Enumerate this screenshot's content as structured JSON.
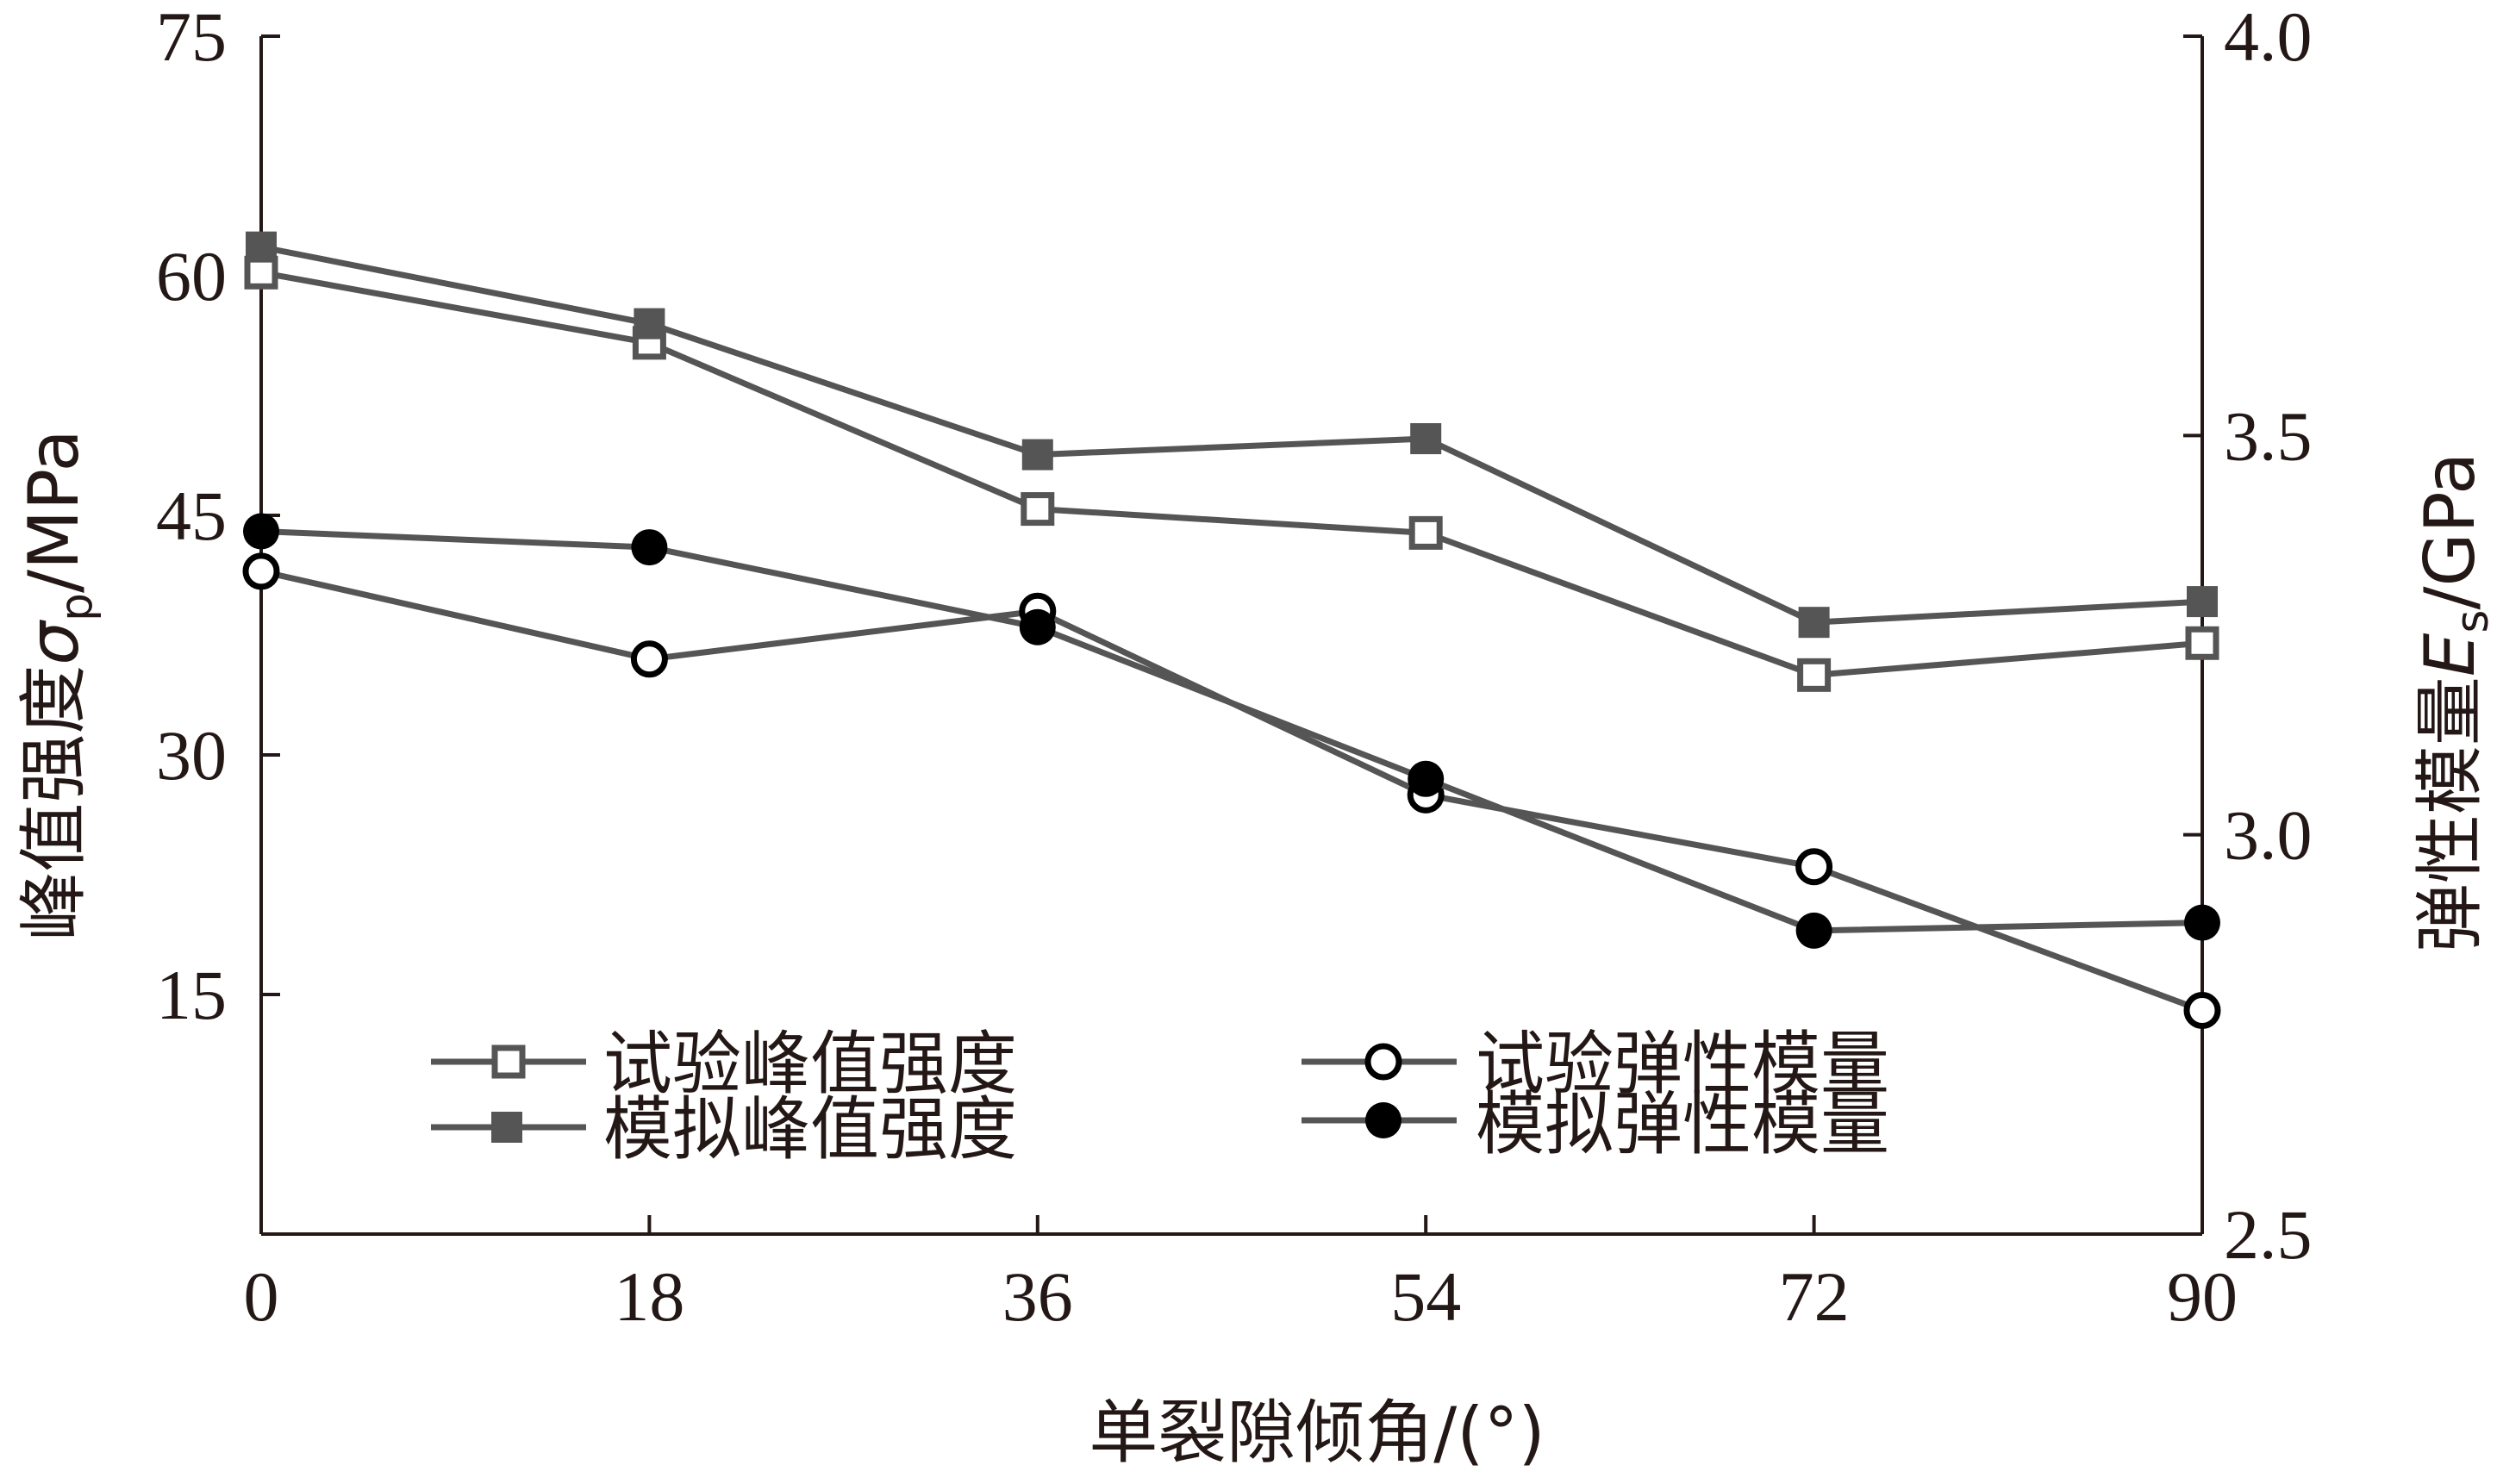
{
  "chart_data": {
    "type": "line",
    "x": [
      0,
      18,
      36,
      54,
      72,
      90
    ],
    "xlabel": "单裂隙倾角/(°)",
    "xlim": [
      0,
      90
    ],
    "xticks": [
      "0",
      "18",
      "36",
      "54",
      "72",
      "90"
    ],
    "ylabel_left": {
      "main": "峰值强度",
      "sym": "σ",
      "sub": "p",
      "unit": "/MPa"
    },
    "ylim_left": [
      0,
      75
    ],
    "yticks_left": [
      "15",
      "30",
      "45",
      "60",
      "75"
    ],
    "ylabel_right": {
      "main": "弹性模量",
      "sym": "E",
      "sub": "s",
      "unit": "/GPa"
    },
    "ylim_right": [
      2.5,
      4.0
    ],
    "yticks_right": [
      "2.5",
      "3.0",
      "3.5",
      "4.0"
    ],
    "grid": false,
    "legend_position": "lower-left",
    "series": [
      {
        "name": "试验峰值强度",
        "axis": "left",
        "marker": "square-open",
        "values": [
          60.2,
          55.8,
          45.4,
          43.9,
          35.0,
          37.0
        ]
      },
      {
        "name": "模拟峰值强度",
        "axis": "left",
        "marker": "square-filled",
        "values": [
          61.8,
          57.0,
          48.8,
          49.8,
          38.3,
          39.6
        ]
      },
      {
        "name": "试验弹性模量",
        "axis": "right",
        "marker": "circle-open",
        "values": [
          3.33,
          3.22,
          3.28,
          3.05,
          2.96,
          2.78
        ]
      },
      {
        "name": "模拟弹性模量",
        "axis": "right",
        "marker": "circle-filled",
        "values": [
          3.38,
          3.36,
          3.26,
          3.07,
          2.88,
          2.89
        ]
      }
    ],
    "colors": {
      "line": "#555555",
      "marker": "#555555",
      "filled_circle": "#000000",
      "text": "#231815"
    }
  }
}
